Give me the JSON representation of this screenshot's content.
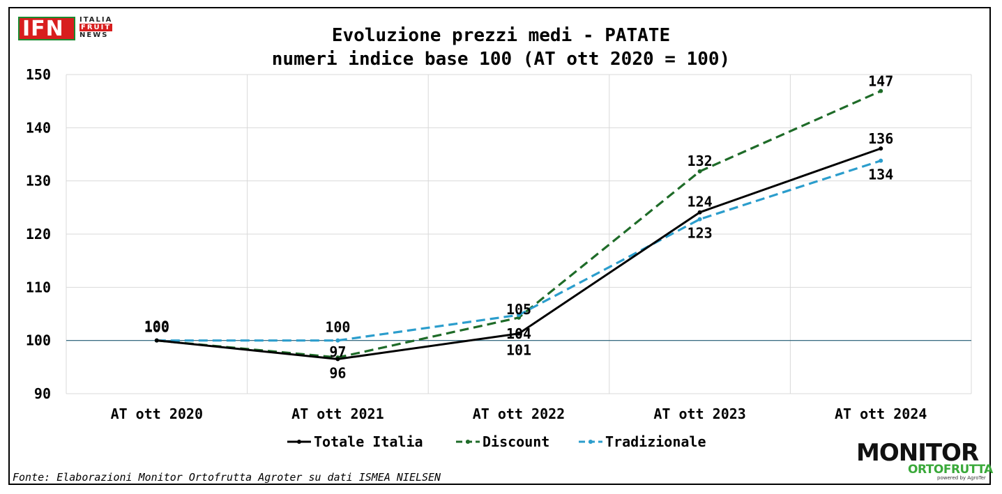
{
  "logo_ifn": {
    "letters": "IFN",
    "line1": "ITALIA",
    "line2": "FRUIT",
    "line3": "NEWS"
  },
  "logo_monitor": {
    "word": "MONITOR",
    "sub": "ORTOFRUTTA",
    "tiny": "powered by AgroTer"
  },
  "source": "Fonte: Elaborazioni Monitor Ortofrutta Agroter su dati ISMEA NIELSEN",
  "chart_data": {
    "type": "line",
    "title": "Evoluzione prezzi medi - PATATE",
    "subtitle": "numeri indice base 100 (AT ott 2020  = 100)",
    "categories": [
      "AT ott 2020",
      "AT ott 2021",
      "AT ott 2022",
      "AT ott 2023",
      "AT ott 2024"
    ],
    "ylim": [
      90,
      150
    ],
    "yticks": [
      90,
      100,
      110,
      120,
      130,
      140,
      150
    ],
    "grid": true,
    "reference_line": 100,
    "legend_position": "bottom",
    "series": [
      {
        "name": "Totale Italia",
        "values": [
          100,
          96.5,
          101.3,
          124.1,
          136.1
        ],
        "labels": [
          "100",
          "96",
          "101",
          "124",
          "136"
        ],
        "color": "#000000",
        "dash": "solid"
      },
      {
        "name": "Discount",
        "values": [
          100,
          96.8,
          104.3,
          131.8,
          146.9
        ],
        "labels": [
          "",
          "97",
          "104",
          "132",
          "147"
        ],
        "color": "#1e6b28",
        "dash": "dashed"
      },
      {
        "name": "Tradizionale",
        "values": [
          100,
          100.0,
          104.8,
          122.8,
          133.8
        ],
        "labels": [
          "100",
          "100",
          "105",
          "123",
          "134"
        ],
        "color": "#2b9dcc",
        "dash": "dashed"
      }
    ]
  }
}
